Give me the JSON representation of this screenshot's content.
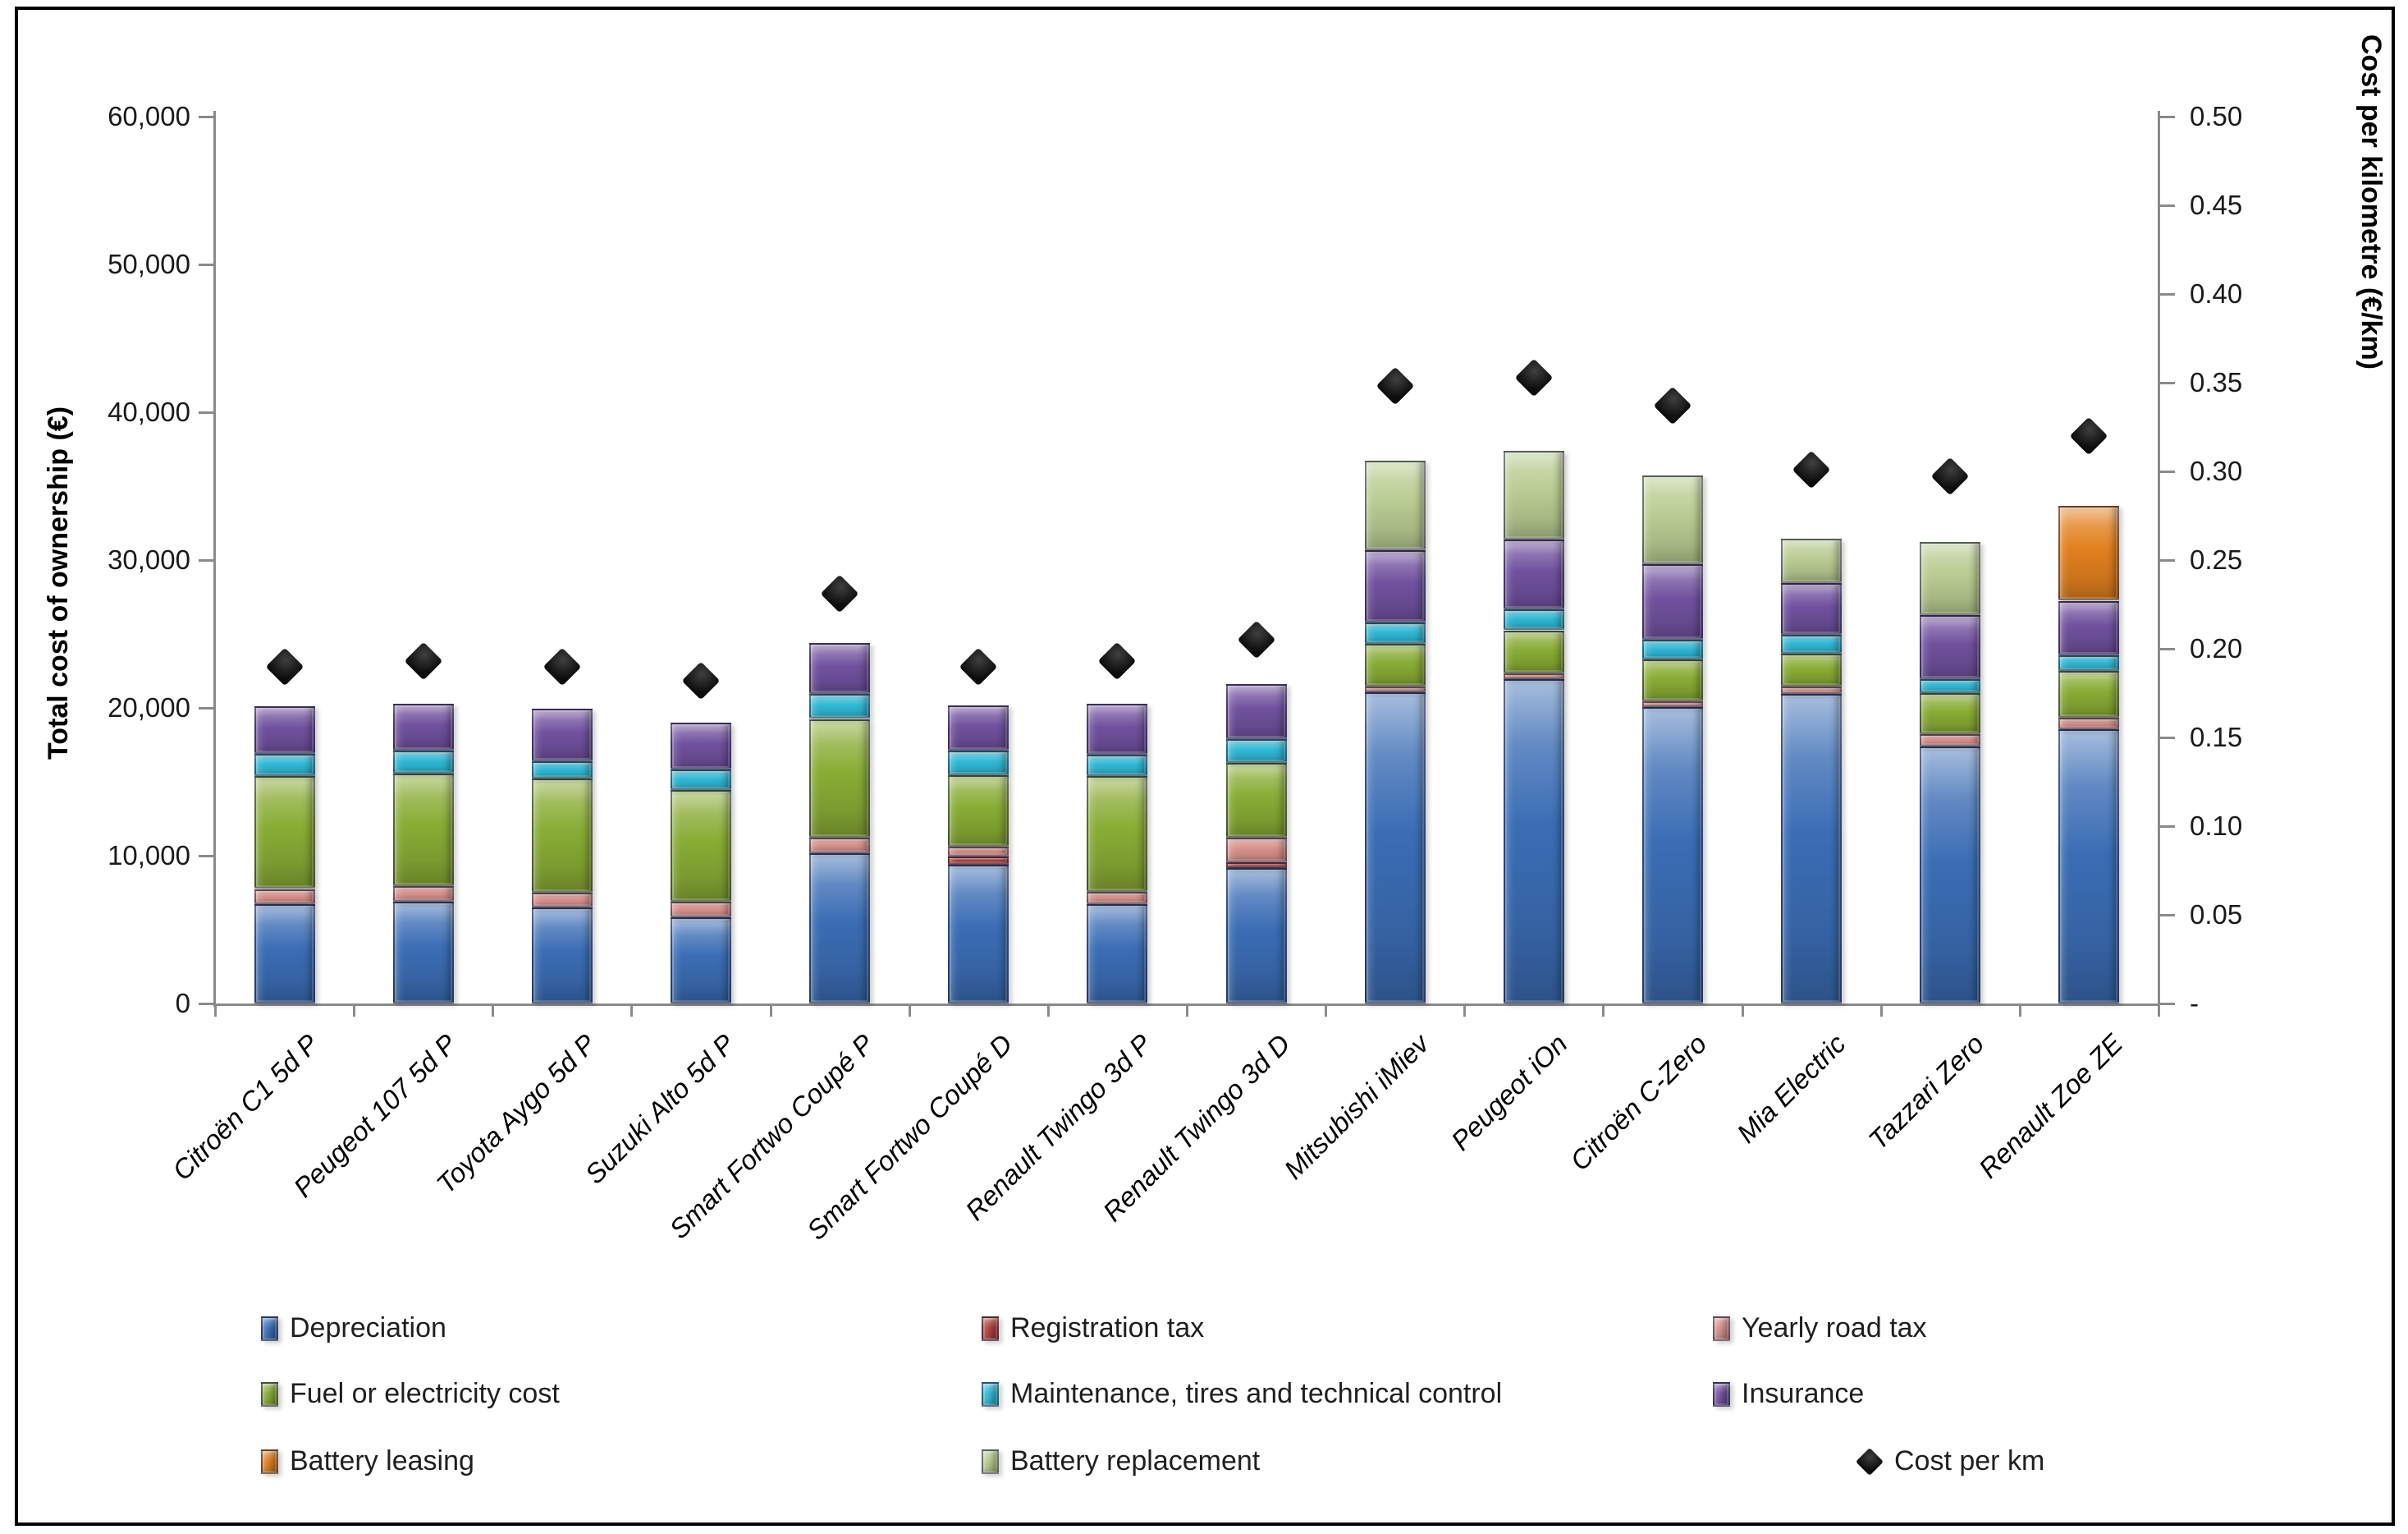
{
  "chart_data": {
    "type": "bar",
    "subtype": "stacked-column-with-secondary-scatter",
    "title": "",
    "categories": [
      "Citroën C1 5d P",
      "Peugeot 107 5d P",
      "Toyota Aygo 5d P",
      "Suzuki Alto 5d P",
      "Smart Fortwo Coupé P",
      "Smart Fortwo Coupé D",
      "Renault Twingo 3d P",
      "Renault Twingo 3d D",
      "Mitsubishi iMiev",
      "Peugeot iOn",
      "Citroën C-Zero",
      "Mia Electric",
      "Tazzari Zero",
      "Renault Zoe ZE"
    ],
    "series": [
      {
        "key": "depreciation",
        "name": "Depreciation",
        "color": "#3b6db5",
        "values": [
          6700,
          6900,
          6500,
          5850,
          10150,
          9400,
          6700,
          9150,
          21050,
          21950,
          20050,
          20950,
          17400,
          18550
        ]
      },
      {
        "key": "registration_tax",
        "name": "Registration tax",
        "color": "#b23f3c",
        "values": [
          0,
          0,
          0,
          0,
          0,
          550,
          0,
          400,
          0,
          0,
          0,
          0,
          0,
          0
        ]
      },
      {
        "key": "yearly_road_tax",
        "name": "Yearly road tax",
        "color": "#d9918d",
        "values": [
          1050,
          1050,
          1000,
          1050,
          1050,
          650,
          850,
          1650,
          400,
          400,
          400,
          500,
          800,
          800
        ]
      },
      {
        "key": "fuel_or_electricity",
        "name": "Fuel or electricity cost",
        "color": "#89ac35",
        "values": [
          7650,
          7600,
          7700,
          7550,
          8050,
          4850,
          7850,
          5100,
          2900,
          2900,
          2850,
          2200,
          2800,
          3150
        ]
      },
      {
        "key": "maintenance",
        "name": "Maintenance, tires and technical control",
        "color": "#2fb9d6",
        "values": [
          1500,
          1550,
          1200,
          1400,
          1700,
          1650,
          1450,
          1600,
          1450,
          1400,
          1300,
          1300,
          950,
          1050
        ]
      },
      {
        "key": "insurance",
        "name": "Insurance",
        "color": "#71519f",
        "values": [
          3200,
          3200,
          3550,
          3150,
          3450,
          3050,
          3450,
          3700,
          4850,
          4750,
          5100,
          3500,
          4350,
          3700
        ]
      },
      {
        "key": "battery_leasing",
        "name": "Battery leasing",
        "color": "#e2801f",
        "values": [
          0,
          0,
          0,
          0,
          0,
          0,
          0,
          0,
          0,
          0,
          0,
          0,
          0,
          6400
        ]
      },
      {
        "key": "battery_replacement",
        "name": "Battery replacement",
        "color": "#b9cc92",
        "values": [
          0,
          0,
          0,
          0,
          0,
          0,
          0,
          0,
          6050,
          6000,
          6000,
          3000,
          4950,
          0
        ]
      }
    ],
    "totals": [
      20100,
      20300,
      19950,
      19000,
      24400,
      20150,
      20300,
      21600,
      36700,
      37400,
      35700,
      31450,
      31250,
      33650
    ],
    "marker_series": {
      "name": "Cost per km",
      "color": "#141414",
      "axis": "right",
      "marker": "diamond",
      "values": [
        0.19,
        0.193,
        0.19,
        0.182,
        0.231,
        0.19,
        0.193,
        0.205,
        0.348,
        0.353,
        0.337,
        0.301,
        0.297,
        0.32
      ]
    },
    "left_axis": {
      "title": "Total cost of ownership (€)",
      "min": 0,
      "max": 60000,
      "step": 10000,
      "tick_labels": [
        "60,000",
        "50,000",
        "40,000",
        "30,000",
        "20,000",
        "10,000",
        "0"
      ]
    },
    "right_axis": {
      "title": "Cost per kilometre (€/km)",
      "min": 0,
      "max": 0.5,
      "step": 0.05,
      "tick_labels": [
        "0.50",
        "0.45",
        "0.40",
        "0.35",
        "0.30",
        "0.25",
        "0.20",
        "0.15",
        "0.10",
        "0.05",
        "-"
      ]
    },
    "grid": false,
    "legend_position": "bottom",
    "legend": [
      {
        "label": "Depreciation",
        "series": "depreciation",
        "marker": "swatch"
      },
      {
        "label": "Registration tax",
        "series": "registration_tax",
        "marker": "swatch"
      },
      {
        "label": "Yearly road tax",
        "series": "yearly_road_tax",
        "marker": "swatch"
      },
      {
        "label": "Fuel or electricity cost",
        "series": "fuel_or_electricity",
        "marker": "swatch"
      },
      {
        "label": "Maintenance, tires and technical control",
        "series": "maintenance",
        "marker": "swatch"
      },
      {
        "label": "Insurance",
        "series": "insurance",
        "marker": "swatch"
      },
      {
        "label": "Battery leasing",
        "series": "battery_leasing",
        "marker": "swatch"
      },
      {
        "label": "Battery replacement",
        "series": "battery_replacement",
        "marker": "swatch"
      },
      {
        "label": "Cost per km",
        "series": "cost_per_km",
        "marker": "diamond"
      }
    ]
  }
}
